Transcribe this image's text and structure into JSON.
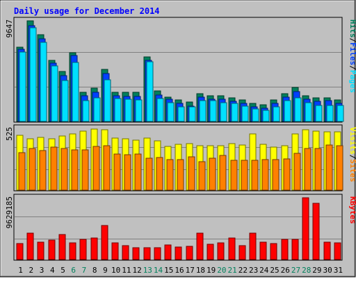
{
  "title": "Daily usage for December 2014",
  "colors": {
    "background": "#C0C0C0",
    "title": "#0000FF",
    "hits": "#00805C",
    "files": "#0040FF",
    "pages": "#00E0FF",
    "visits": "#FFFF00",
    "sites": "#FF8000",
    "kbytes": "#FF0000",
    "weekend_day": "#00805C",
    "weekday": "#000000"
  },
  "chart_data": {
    "type": "bar",
    "categories": [
      "1",
      "2",
      "3",
      "4",
      "5",
      "6",
      "7",
      "8",
      "9",
      "10",
      "11",
      "12",
      "13",
      "14",
      "15",
      "16",
      "17",
      "18",
      "19",
      "20",
      "21",
      "22",
      "23",
      "24",
      "25",
      "26",
      "27",
      "28",
      "29",
      "30",
      "31"
    ],
    "weekend_days": [
      "6",
      "7",
      "13",
      "14",
      "20",
      "21",
      "27",
      "28"
    ],
    "panels": [
      {
        "id": "hits",
        "axis_max_label": "9647",
        "ylim": [
          0,
          9647
        ],
        "legend": [
          {
            "text": "Pages",
            "color_key": "pages"
          },
          {
            "text": "Files",
            "color_key": "files"
          },
          {
            "text": "Hits",
            "color_key": "hits"
          }
        ],
        "series": [
          {
            "name": "Hits",
            "color_key": "hits",
            "values": [
              7130,
              9647,
              8300,
              5880,
              4780,
              6600,
              2800,
              3190,
              4970,
              2810,
              2810,
              2790,
              6160,
              2910,
              2300,
              2060,
              1860,
              2640,
              2470,
              2460,
              2260,
              2040,
              1700,
              1600,
              2090,
              2640,
              3270,
              2430,
              2240,
              2240,
              2090
            ]
          },
          {
            "name": "Files",
            "color_key": "files",
            "values": [
              6900,
              9200,
              7950,
              5610,
              4370,
              6300,
              2460,
              2790,
              4560,
              2460,
              2420,
              2420,
              5880,
              2530,
              2120,
              1700,
              1440,
              2310,
              2130,
              2120,
              1900,
              1700,
              1390,
              1250,
              1740,
              2300,
              2860,
              2120,
              1930,
              1990,
              1700
            ]
          },
          {
            "name": "Pages",
            "color_key": "pages",
            "values": [
              6630,
              9000,
              7560,
              5350,
              3930,
              5640,
              1970,
              2230,
              3990,
              2170,
              2120,
              2060,
              5700,
              2190,
              1810,
              1380,
              1370,
              1970,
              2010,
              1770,
              1710,
              1450,
              1220,
              1050,
              1420,
              2000,
              2270,
              1780,
              1540,
              1510,
              1520
            ]
          }
        ]
      },
      {
        "id": "visits",
        "axis_max_label": "525",
        "ylim": [
          0,
          525
        ],
        "legend": [
          {
            "text": "Sites",
            "color_key": "sites"
          },
          {
            "text": "Visits",
            "color_key": "visits"
          }
        ],
        "series": [
          {
            "name": "Visits",
            "color_key": "visits",
            "values": [
              464,
              439,
              448,
              436,
              460,
              477,
              503,
              522,
              513,
              441,
              436,
              424,
              444,
              416,
              369,
              387,
              394,
              380,
              380,
              380,
              398,
              386,
              476,
              389,
              367,
              380,
              478,
              515,
              499,
              496,
              497
            ]
          },
          {
            "name": "Sites",
            "color_key": "sites",
            "values": [
              319,
              354,
              334,
              365,
              356,
              344,
              340,
              369,
              377,
              309,
              299,
              306,
              271,
              275,
              257,
              257,
              283,
              241,
              272,
              297,
              253,
              253,
              253,
              261,
              261,
              264,
              315,
              351,
              353,
              384,
              377
            ]
          }
        ]
      },
      {
        "id": "kbytes",
        "axis_max_label": "9629185",
        "ylim": [
          0,
          9629185
        ],
        "legend": [
          {
            "text": "KBytes",
            "color_key": "kbytes"
          }
        ],
        "series": [
          {
            "name": "KBytes",
            "color_key": "kbytes",
            "values": [
              2450000,
              4130000,
              2740000,
              3040000,
              3880000,
              2600000,
              3150000,
              3380000,
              5320000,
              2600000,
              2180000,
              1890000,
              1890000,
              1890000,
              2300000,
              2000000,
              2060000,
              4130000,
              2410000,
              2590000,
              3400000,
              2200000,
              4090000,
              2740000,
              2460000,
              3090000,
              3100000,
              9629185,
              8750000,
              2740000,
              2650000
            ]
          }
        ]
      }
    ]
  }
}
